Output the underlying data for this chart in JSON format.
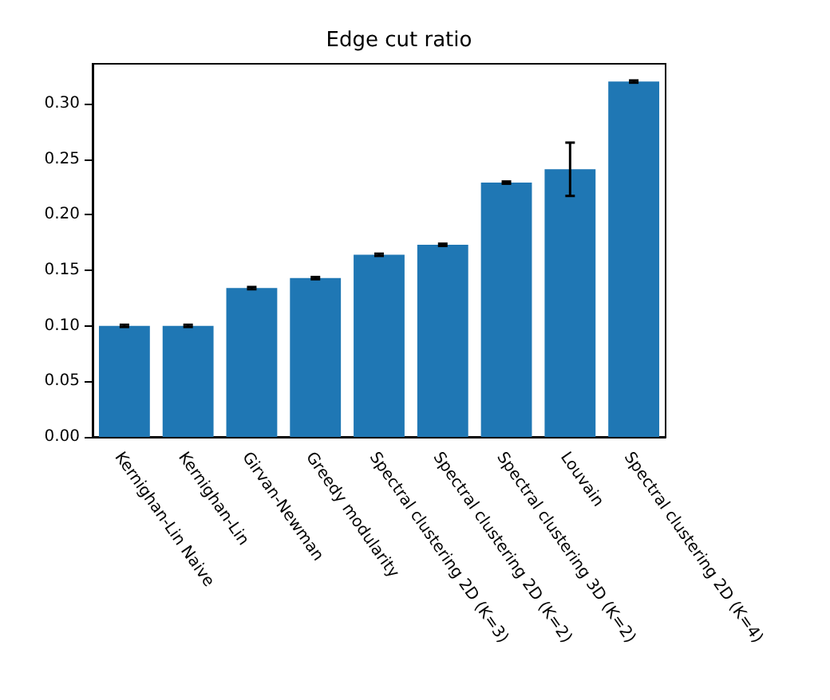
{
  "chart_data": {
    "type": "bar",
    "title": "Edge cut ratio",
    "categories": [
      "Kernighan-Lin Naive",
      "Kernighan-Lin",
      "Girvan-Newman",
      "Greedy modularity",
      "Spectral clustering 2D (K=3)",
      "Spectral clustering 2D (K=2)",
      "Spectral clustering 3D (K=2)",
      "Louvain",
      "Spectral clustering 2D (K=4)"
    ],
    "values": [
      0.1,
      0.1,
      0.134,
      0.143,
      0.164,
      0.173,
      0.229,
      0.241,
      0.32
    ],
    "errors": [
      0.001,
      0.001,
      0.001,
      0.001,
      0.001,
      0.001,
      0.001,
      0.024,
      0.001
    ],
    "color": "#1f77b4",
    "ylim": [
      0,
      0.336
    ],
    "yticks": [
      {
        "value": 0,
        "label": "0.00"
      },
      {
        "value": 0.05,
        "label": "0.05"
      },
      {
        "value": 0.1,
        "label": "0.10"
      },
      {
        "value": 0.15,
        "label": "0.15"
      },
      {
        "value": 0.2,
        "label": "0.20"
      },
      {
        "value": 0.25,
        "label": "0.25"
      },
      {
        "value": 0.3,
        "label": "0.30"
      }
    ],
    "grid": false
  }
}
